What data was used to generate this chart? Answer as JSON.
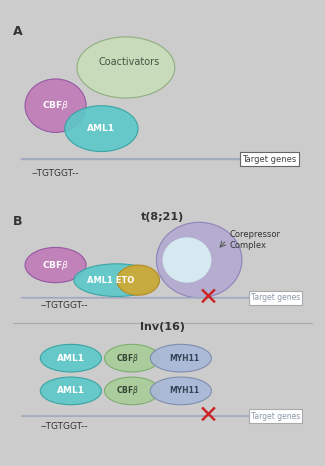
{
  "panel_A_bg": "#fdf8e8",
  "panel_B_bg": "#d6e8f0",
  "border_color": "#aaaaaa",
  "label_A": "A",
  "label_B": "B",
  "title_t821": "t(8;21)",
  "title_inv16": "Inv(16)",
  "tgtggt_text": "--TGTGGT--",
  "target_genes_text": "Target genes",
  "coactivators_text": "Coactivators",
  "corepressor_text": "Corepressor\nComplex",
  "cbfb_color": "#c07ab8",
  "aml1_color": "#5bc8c8",
  "coactivators_color": "#c8ddb8",
  "eto_color": "#d4a830",
  "aml1_eto_color": "#5bc8c8",
  "corepressor_color": "#b0a8d0",
  "cbfb_myh11_green": "#a8cc98",
  "myh11_purple": "#a8b8d8",
  "arrow_color": "#a0a8c0",
  "cross_color": "#cc2222",
  "dna_line_color": "#a0a8c0",
  "text_color": "#333333",
  "target_genes_color_A": "#444444",
  "target_genes_color_B": "#8898aa"
}
